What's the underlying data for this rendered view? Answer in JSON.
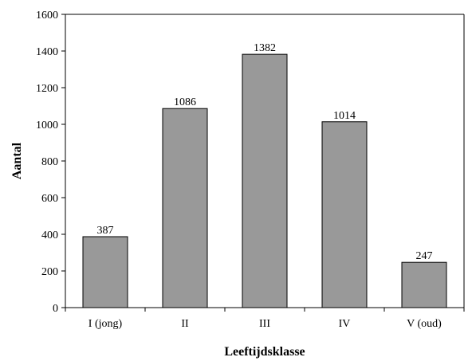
{
  "chart_data": {
    "type": "bar",
    "title": "",
    "xlabel": "Leeftijdsklasse",
    "ylabel": "Aantal",
    "categories": [
      "I (jong)",
      "II",
      "III",
      "IV",
      "V (oud)"
    ],
    "values": [
      387,
      1086,
      1382,
      1014,
      247
    ],
    "data_labels": [
      "387",
      "1086",
      "1382",
      "1014",
      "247"
    ],
    "ylim": [
      0,
      1600
    ],
    "yticks": [
      0,
      200,
      400,
      600,
      800,
      1000,
      1200,
      1400,
      1600
    ],
    "ytick_labels": [
      "0",
      "200",
      "400",
      "600",
      "800",
      "1000",
      "1200",
      "1400",
      "1600"
    ],
    "grid": false,
    "legend": "none",
    "bar_color": "#999999",
    "bar_edge_color": "#000000"
  }
}
